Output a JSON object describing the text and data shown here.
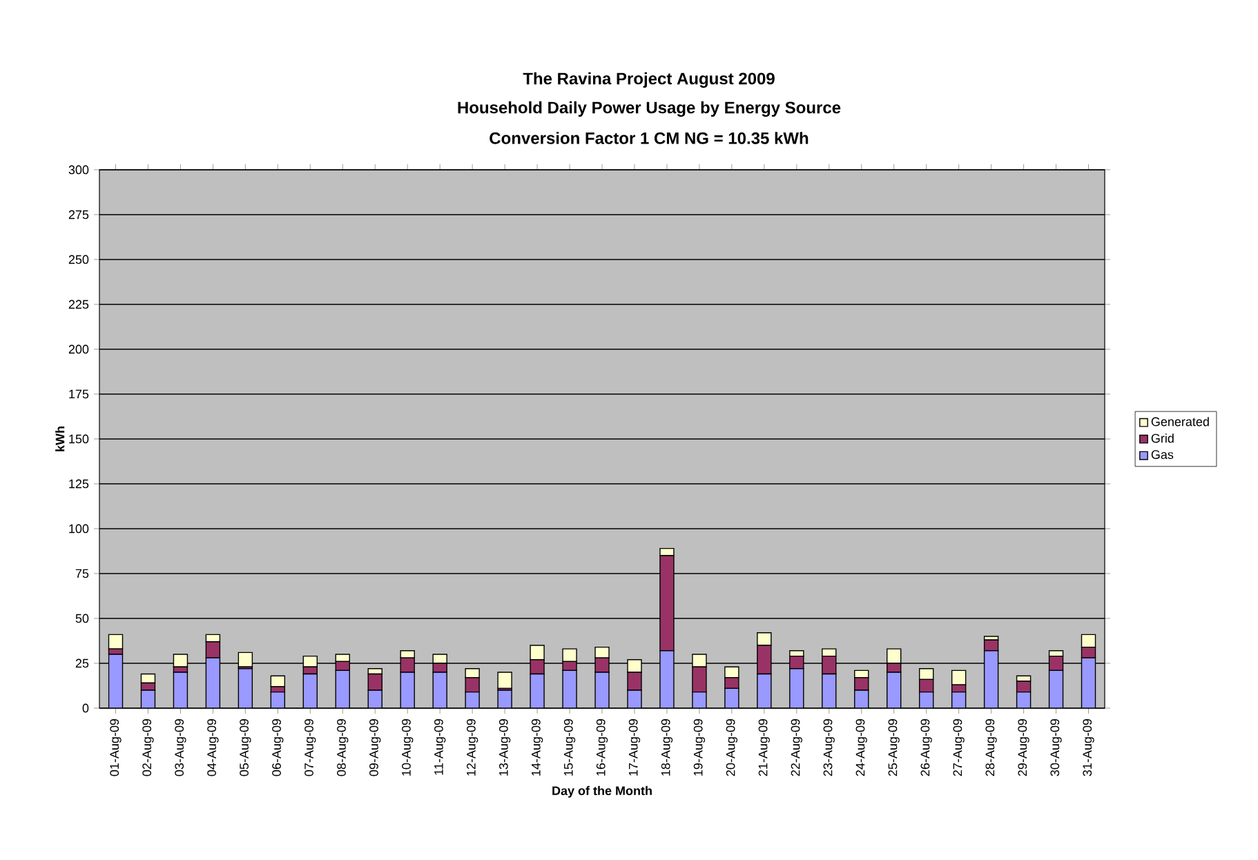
{
  "chart_data": {
    "type": "bar",
    "title": "The Ravina Project August 2009",
    "subtitle": "Household Daily Power Usage by Energy Source",
    "annotations": [
      "Conversion Factor 1 CM NG = 10.35 kWh"
    ],
    "xlabel": "Day of the Month",
    "ylabel": "kWh",
    "categories": [
      "01-Aug-09",
      "02-Aug-09",
      "03-Aug-09",
      "04-Aug-09",
      "05-Aug-09",
      "06-Aug-09",
      "07-Aug-09",
      "08-Aug-09",
      "09-Aug-09",
      "10-Aug-09",
      "11-Aug-09",
      "12-Aug-09",
      "13-Aug-09",
      "14-Aug-09",
      "15-Aug-09",
      "16-Aug-09",
      "17-Aug-09",
      "18-Aug-09",
      "19-Aug-09",
      "20-Aug-09",
      "21-Aug-09",
      "22-Aug-09",
      "23-Aug-09",
      "24-Aug-09",
      "25-Aug-09",
      "26-Aug-09",
      "27-Aug-09",
      "28-Aug-09",
      "29-Aug-09",
      "30-Aug-09",
      "31-Aug-09"
    ],
    "series": [
      {
        "name": "Gas",
        "color": "#9999ff",
        "values": [
          30,
          10,
          20,
          28,
          22,
          9,
          19,
          21,
          10,
          20,
          20,
          9,
          10,
          19,
          21,
          20,
          10,
          32,
          9,
          11,
          19,
          22,
          19,
          10,
          20,
          9,
          9,
          32,
          9,
          21,
          28
        ]
      },
      {
        "name": "Grid",
        "color": "#993366",
        "values": [
          3,
          4,
          3,
          9,
          1,
          3,
          4,
          5,
          9,
          8,
          5,
          8,
          1,
          8,
          5,
          8,
          10,
          53,
          14,
          6,
          16,
          7,
          10,
          7,
          5,
          7,
          4,
          6,
          6,
          8,
          6
        ]
      },
      {
        "name": "Generated",
        "color": "#ffffcc",
        "values": [
          8,
          5,
          7,
          4,
          8,
          6,
          6,
          4,
          3,
          4,
          5,
          5,
          9,
          8,
          7,
          6,
          7,
          4,
          7,
          6,
          7,
          3,
          4,
          4,
          8,
          6,
          8,
          2,
          3,
          3,
          7
        ]
      }
    ],
    "stacked": true,
    "ylim": [
      0,
      300
    ],
    "yticks": [
      0,
      25,
      50,
      75,
      100,
      125,
      150,
      175,
      200,
      225,
      250,
      275,
      300
    ],
    "grid": "y",
    "legend": "right"
  }
}
